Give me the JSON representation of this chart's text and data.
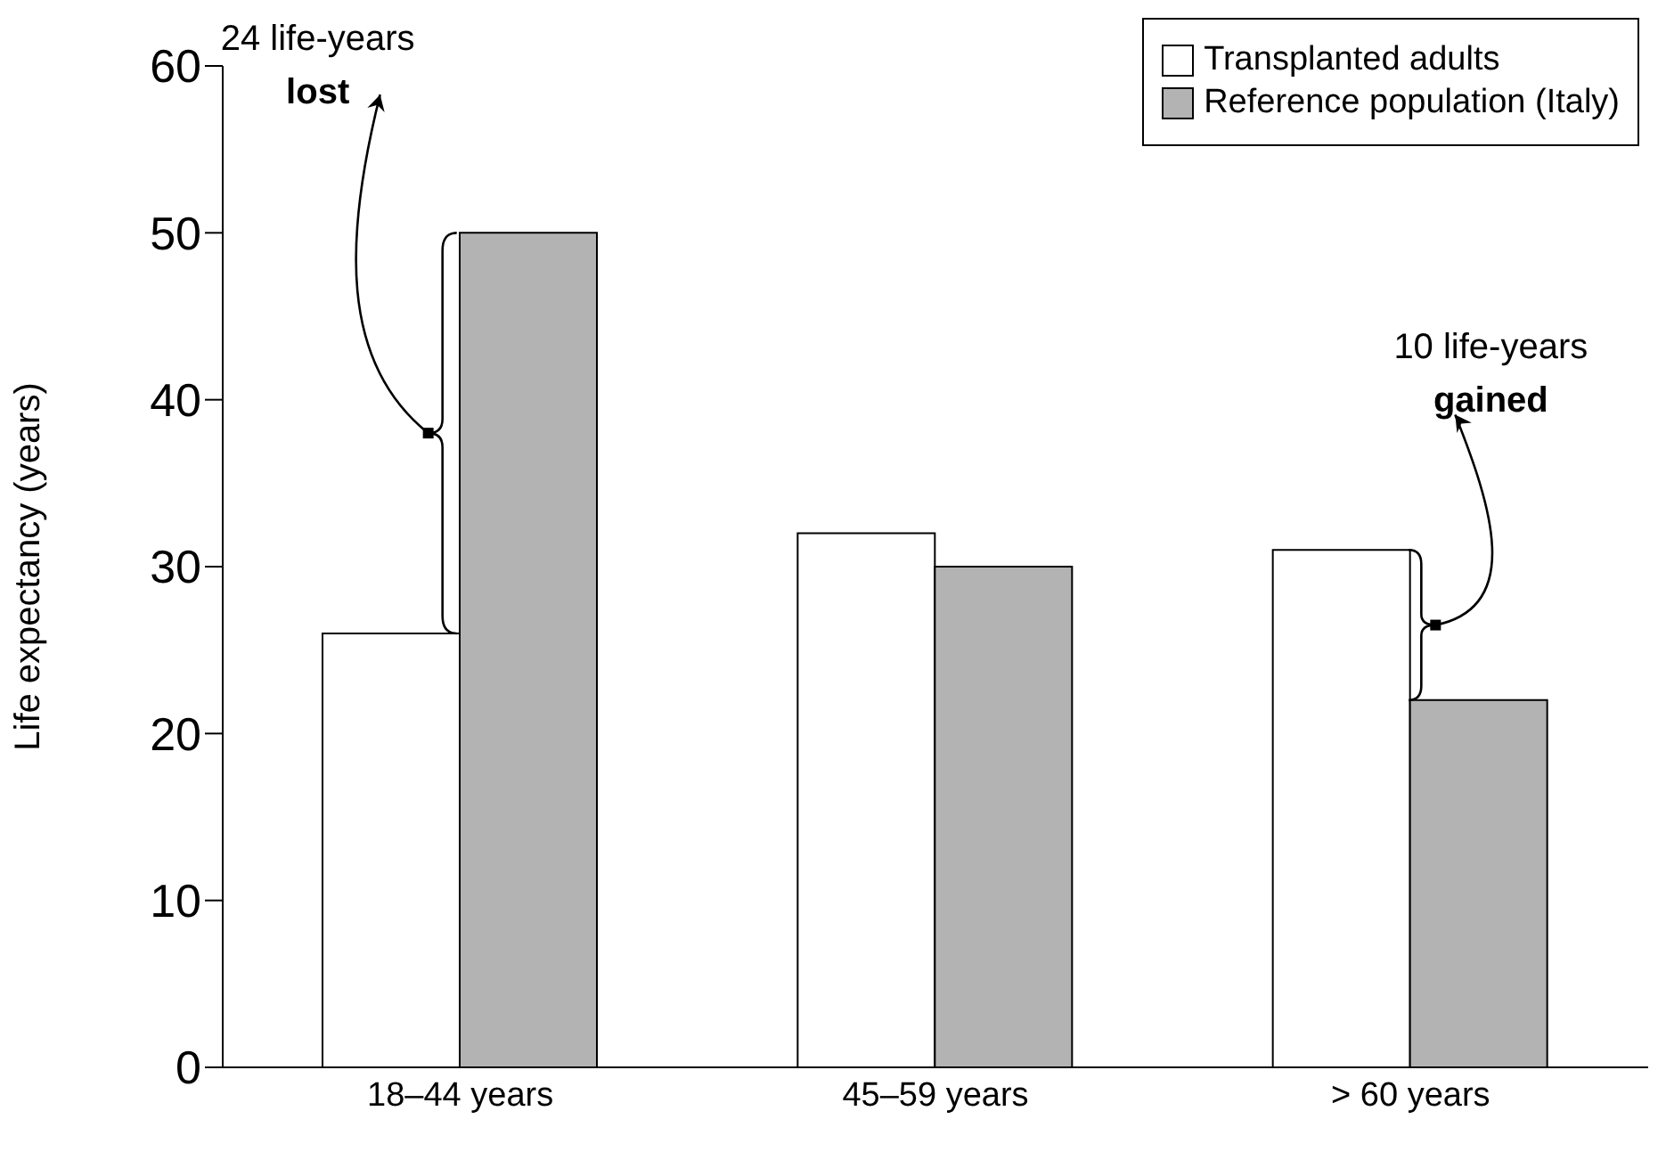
{
  "chart_data": {
    "type": "bar",
    "ylabel": "Life expectancy (years)",
    "categories": [
      "18–44 years",
      "45–59 years",
      "> 60 years"
    ],
    "series": [
      {
        "name": "Transplanted adults",
        "color": "#ffffff",
        "values": [
          26,
          32,
          31
        ]
      },
      {
        "name": "Reference population (Italy)",
        "color": "#b3b3b3",
        "values": [
          50,
          30,
          22
        ]
      }
    ],
    "ylim": [
      0,
      60
    ],
    "yticks": [
      0,
      10,
      20,
      30,
      40,
      50,
      60
    ],
    "grid": false,
    "legend": "top right",
    "annotations": [
      "24 life-years\nlost",
      "10 life-years\ngained"
    ]
  }
}
